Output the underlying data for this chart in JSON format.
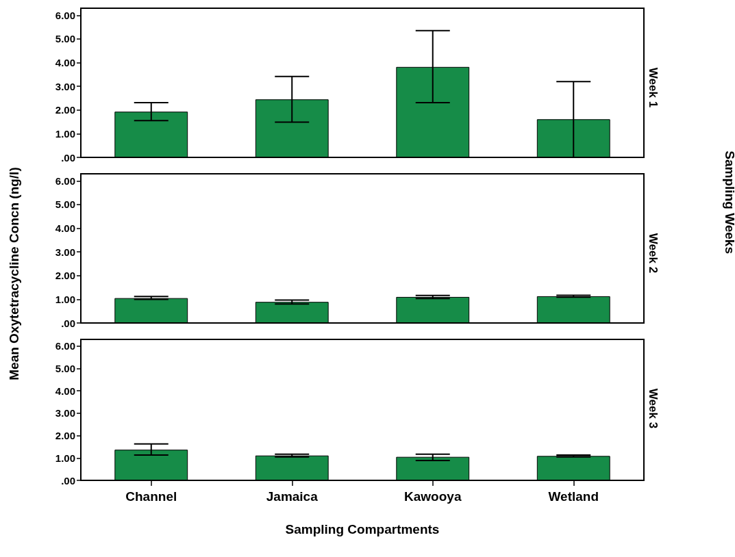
{
  "chart_data": [
    {
      "type": "bar",
      "title": "Week 1",
      "categories": [
        null,
        null,
        null,
        null
      ],
      "values": [
        1.93,
        2.45,
        3.82,
        1.61
      ],
      "errors": [
        [
          1.55,
          2.31
        ],
        [
          1.49,
          3.42
        ],
        [
          2.31,
          5.35
        ],
        [
          0,
          3.2
        ]
      ],
      "color": "#168c48",
      "ylim": [
        0,
        6.3
      ],
      "yticks": [
        {
          "value": 0,
          "label": ".00"
        },
        {
          "value": 1,
          "label": "1.00"
        },
        {
          "value": 2,
          "label": "2.00"
        },
        {
          "value": 3,
          "label": "3.00"
        },
        {
          "value": 4,
          "label": "4.00"
        },
        {
          "value": 5,
          "label": "5.00"
        },
        {
          "value": 6,
          "label": "6.00"
        }
      ],
      "tick_labels": "y"
    },
    {
      "type": "bar",
      "title": "Week 2",
      "ylabel": "Mean Oxytetracycline Concn (ng/l)",
      "annotations": [
        "Sampling Weeks"
      ],
      "categories": [
        null,
        null,
        null,
        null
      ],
      "values": [
        1.05,
        0.89,
        1.1,
        1.13
      ],
      "errors": [
        [
          1.0,
          1.12
        ],
        [
          0.8,
          0.97
        ],
        [
          1.03,
          1.16
        ],
        [
          1.09,
          1.17
        ]
      ],
      "color": "#168c48",
      "ylim": [
        0,
        6.3
      ],
      "yticks": [
        {
          "value": 0,
          "label": ".00"
        },
        {
          "value": 1,
          "label": "1.00"
        },
        {
          "value": 2,
          "label": "2.00"
        },
        {
          "value": 3,
          "label": "3.00"
        },
        {
          "value": 4,
          "label": "4.00"
        },
        {
          "value": 5,
          "label": "5.00"
        },
        {
          "value": 6,
          "label": "6.00"
        }
      ],
      "tick_labels": "y"
    },
    {
      "type": "bar",
      "title": "Week 3",
      "xlabel": "Sampling Compartments",
      "categories": [
        "Channel",
        "Jamaica",
        "Kawooya",
        "Wetland"
      ],
      "values": [
        1.37,
        1.11,
        1.05,
        1.09
      ],
      "errors": [
        [
          1.13,
          1.63
        ],
        [
          1.05,
          1.17
        ],
        [
          0.89,
          1.17
        ],
        [
          1.05,
          1.13
        ]
      ],
      "color": "#168c48",
      "ylim": [
        0,
        6.3
      ],
      "yticks": [
        {
          "value": 0,
          "label": ".00"
        },
        {
          "value": 1,
          "label": "1.00"
        },
        {
          "value": 2,
          "label": "2.00"
        },
        {
          "value": 3,
          "label": "3.00"
        },
        {
          "value": 4,
          "label": "4.00"
        },
        {
          "value": 5,
          "label": "5.00"
        },
        {
          "value": 6,
          "label": "6.00"
        }
      ]
    }
  ]
}
